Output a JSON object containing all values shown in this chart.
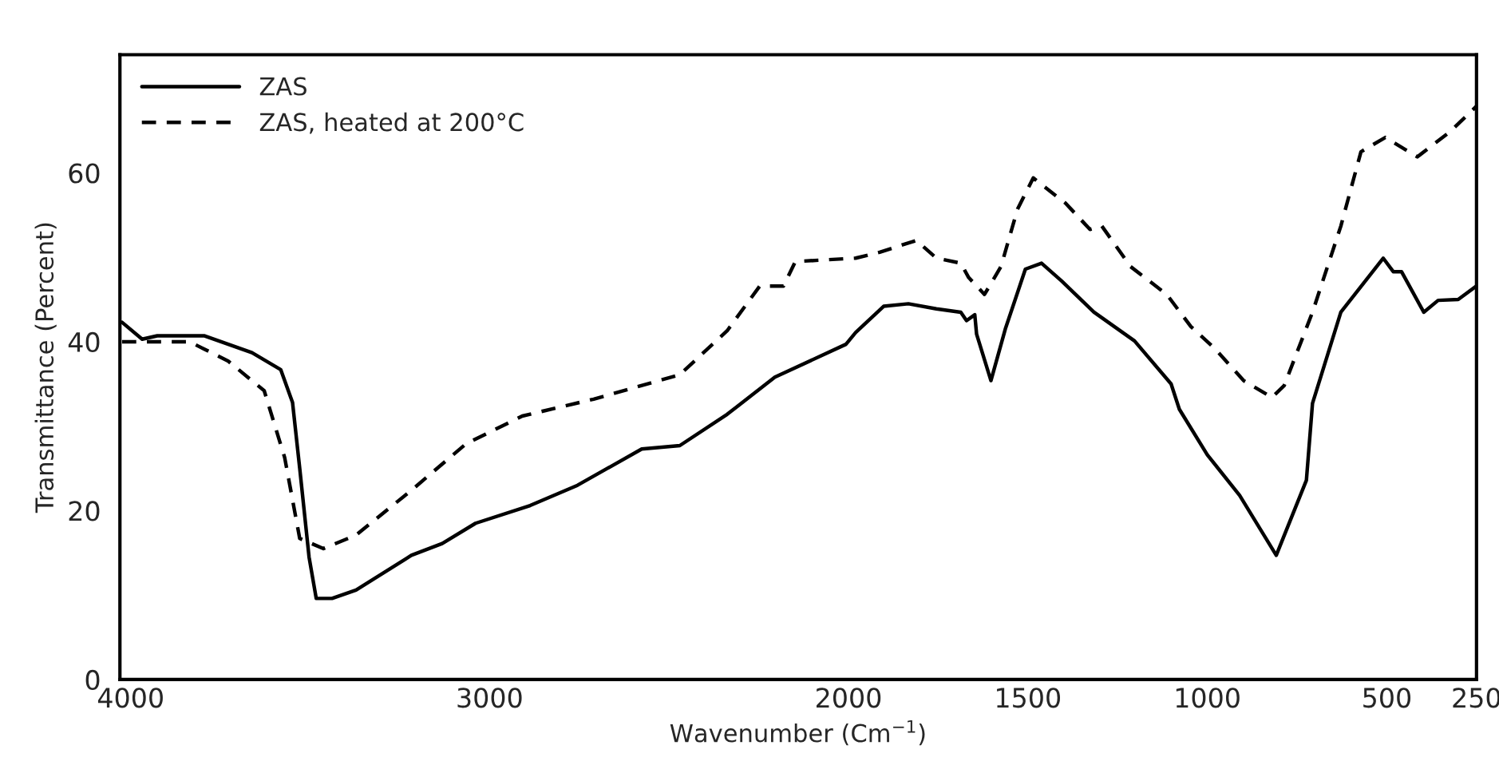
{
  "chart_data": {
    "type": "line",
    "xlabel": "Wavenumber (Cm$^{−1}$)",
    "ylabel": "Transmittance (Percent)",
    "xlim": [
      4030,
      250
    ],
    "ylim": [
      0,
      74
    ],
    "xticks": [
      4000,
      3000,
      2000,
      1500,
      1000,
      500,
      250
    ],
    "yticks": [
      0,
      20,
      40,
      60
    ],
    "grid": false,
    "legend": "top left",
    "marker": "none",
    "series": [
      {
        "name": "ZAS",
        "color": "#000000",
        "line_style": "solid",
        "x": [
          4024,
          3968,
          3926,
          3794,
          3662,
          3582,
          3549,
          3529,
          3503,
          3483,
          3439,
          3372,
          3218,
          3132,
          3039,
          2887,
          2755,
          2576,
          2470,
          2338,
          2205,
          2007,
          1980,
          1902,
          1833,
          1755,
          1687,
          1671,
          1648,
          1643,
          1603,
          1563,
          1507,
          1462,
          1406,
          1316,
          1203,
          1101,
          1078,
          1000,
          910,
          808,
          724,
          707,
          628,
          510,
          482,
          459,
          397,
          357,
          301,
          250
        ],
        "values": [
          42.3,
          40.3,
          40.7,
          40.7,
          38.7,
          36.7,
          32.8,
          25,
          14.5,
          9.6,
          9.6,
          10.6,
          14.7,
          16.1,
          18.5,
          20.6,
          23,
          27.3,
          27.7,
          31.4,
          35.8,
          39.7,
          41.1,
          44.2,
          44.5,
          43.9,
          43.5,
          42.5,
          43.2,
          40.9,
          35.4,
          41.5,
          48.6,
          49.3,
          47.2,
          43.5,
          40.1,
          35,
          32,
          26.6,
          21.8,
          14.7,
          23.6,
          32.7,
          43.5,
          49.9,
          48.3,
          48.3,
          43.5,
          44.9,
          45,
          46.6
        ]
      },
      {
        "name": "ZAS, heated at 200°C",
        "color": "#000000",
        "line_style": "dashed",
        "x": [
          4024,
          3836,
          3728,
          3628,
          3571,
          3529,
          3463,
          3372,
          3218,
          3066,
          2909,
          2710,
          2470,
          2338,
          2247,
          2181,
          2148,
          1980,
          1913,
          1811,
          1755,
          1687,
          1665,
          1621,
          1575,
          1529,
          1485,
          1395,
          1327,
          1294,
          1214,
          1113,
          1046,
          977,
          899,
          820,
          786,
          707,
          628,
          572,
          504,
          415,
          323,
          250
        ],
        "values": [
          40,
          40,
          37.7,
          34.2,
          26.3,
          16.7,
          15.5,
          17.1,
          22.4,
          27.9,
          31.2,
          33.2,
          36.1,
          41.3,
          46.6,
          46.6,
          49.5,
          49.9,
          50.6,
          52,
          49.9,
          49.3,
          47.6,
          45.6,
          48.9,
          55.7,
          59.4,
          56.4,
          53.3,
          53.7,
          48.9,
          45.6,
          41.8,
          39.1,
          35.4,
          33.4,
          34.8,
          43.5,
          53.7,
          62.5,
          64.2,
          61.9,
          64.9,
          67.9
        ]
      }
    ]
  }
}
